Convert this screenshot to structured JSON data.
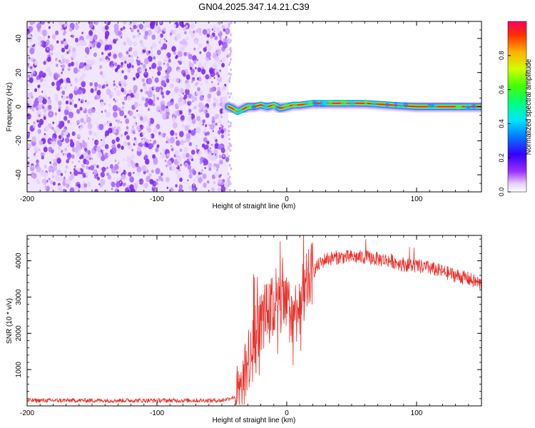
{
  "title": "GN04.2025.347.14.21.C39",
  "chart_data": [
    {
      "type": "heatmap",
      "xlabel": "Height of straight line (km)",
      "ylabel": "Frequency (Hz)",
      "xlim": [
        -200,
        150
      ],
      "ylim": [
        -50,
        50
      ],
      "xticks": [
        -200,
        -100,
        0,
        100
      ],
      "yticks": [
        -40,
        -20,
        0,
        20,
        40
      ],
      "noise_region_x": [
        -200,
        -45
      ],
      "signal_trace": {
        "x": [
          -45,
          -42,
          -38,
          -35,
          -30,
          -25,
          -20,
          -15,
          -10,
          -5,
          0,
          5,
          10,
          20,
          40,
          60,
          80,
          100,
          120,
          150
        ],
        "y": [
          0,
          -1,
          -3,
          -2,
          0,
          0,
          1,
          0,
          1,
          -1,
          0,
          1,
          1,
          2,
          2,
          2,
          1,
          0,
          0,
          0
        ]
      },
      "colorbar": {
        "label": "Normalized spectral amplitude",
        "range": [
          0,
          1
        ],
        "ticks": [
          "0.0",
          "0.2",
          "0.4",
          "0.6",
          "0.8"
        ]
      }
    },
    {
      "type": "line",
      "xlabel": "Height of straight line (km)",
      "ylabel": "SNR (10 * v/v)",
      "xlim": [
        -200,
        150
      ],
      "ylim": [
        0,
        4700
      ],
      "xticks": [
        -200,
        -100,
        0,
        100
      ],
      "yticks": [
        1000,
        2000,
        3000,
        4000
      ],
      "color": "#e8302a",
      "envelope": {
        "x": [
          -200,
          -150,
          -100,
          -50,
          -35,
          -30,
          -25,
          -20,
          -15,
          -10,
          -5,
          0,
          5,
          10,
          15,
          20,
          25,
          30,
          40,
          50,
          60,
          70,
          80,
          90,
          100,
          110,
          120,
          130,
          140,
          150
        ],
        "y": [
          150,
          150,
          150,
          150,
          300,
          1200,
          2000,
          2300,
          2600,
          2700,
          2800,
          2700,
          2500,
          2800,
          3300,
          3700,
          3900,
          4050,
          4100,
          4100,
          4100,
          4050,
          4000,
          3900,
          3850,
          3800,
          3700,
          3600,
          3500,
          3350
        ]
      }
    }
  ]
}
